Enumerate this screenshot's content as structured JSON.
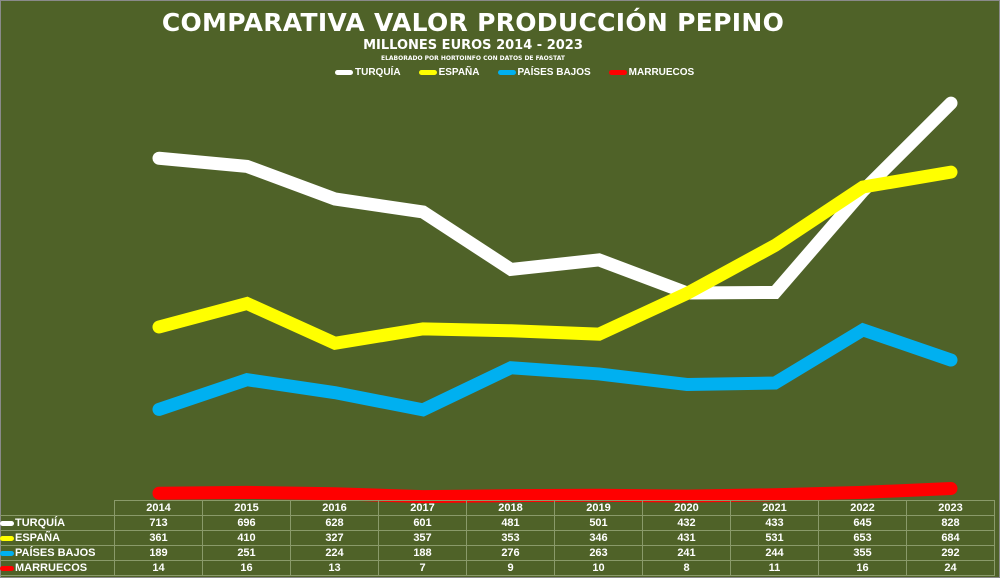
{
  "chart_data": {
    "type": "line",
    "title": "COMPARATIVA VALOR PRODUCCIÓN PEPINO",
    "subtitle": "MILLONES EUROS 2014 - 2023",
    "source": "ELABORADO POR HORTOINFO CON DATOS DE  FAOSTAT",
    "categories": [
      "2014",
      "2015",
      "2016",
      "2017",
      "2018",
      "2019",
      "2020",
      "2021",
      "2022",
      "2023"
    ],
    "ylim": [
      0,
      870
    ],
    "grid": false,
    "legend_position": "top-center",
    "series": [
      {
        "name": "TURQUÍA",
        "color": "#ffffff",
        "values": [
          713,
          696,
          628,
          601,
          481,
          501,
          432,
          433,
          645,
          828
        ]
      },
      {
        "name": "ESPAÑA",
        "color": "#ffff00",
        "values": [
          361,
          410,
          327,
          357,
          353,
          346,
          431,
          531,
          653,
          684
        ]
      },
      {
        "name": "PAÍSES BAJOS",
        "color": "#00b0f0",
        "values": [
          189,
          251,
          224,
          188,
          276,
          263,
          241,
          244,
          355,
          292
        ]
      },
      {
        "name": "MARRUECOS",
        "color": "#ff0000",
        "values": [
          14,
          16,
          13,
          7,
          9,
          10,
          8,
          11,
          16,
          24
        ]
      }
    ]
  }
}
